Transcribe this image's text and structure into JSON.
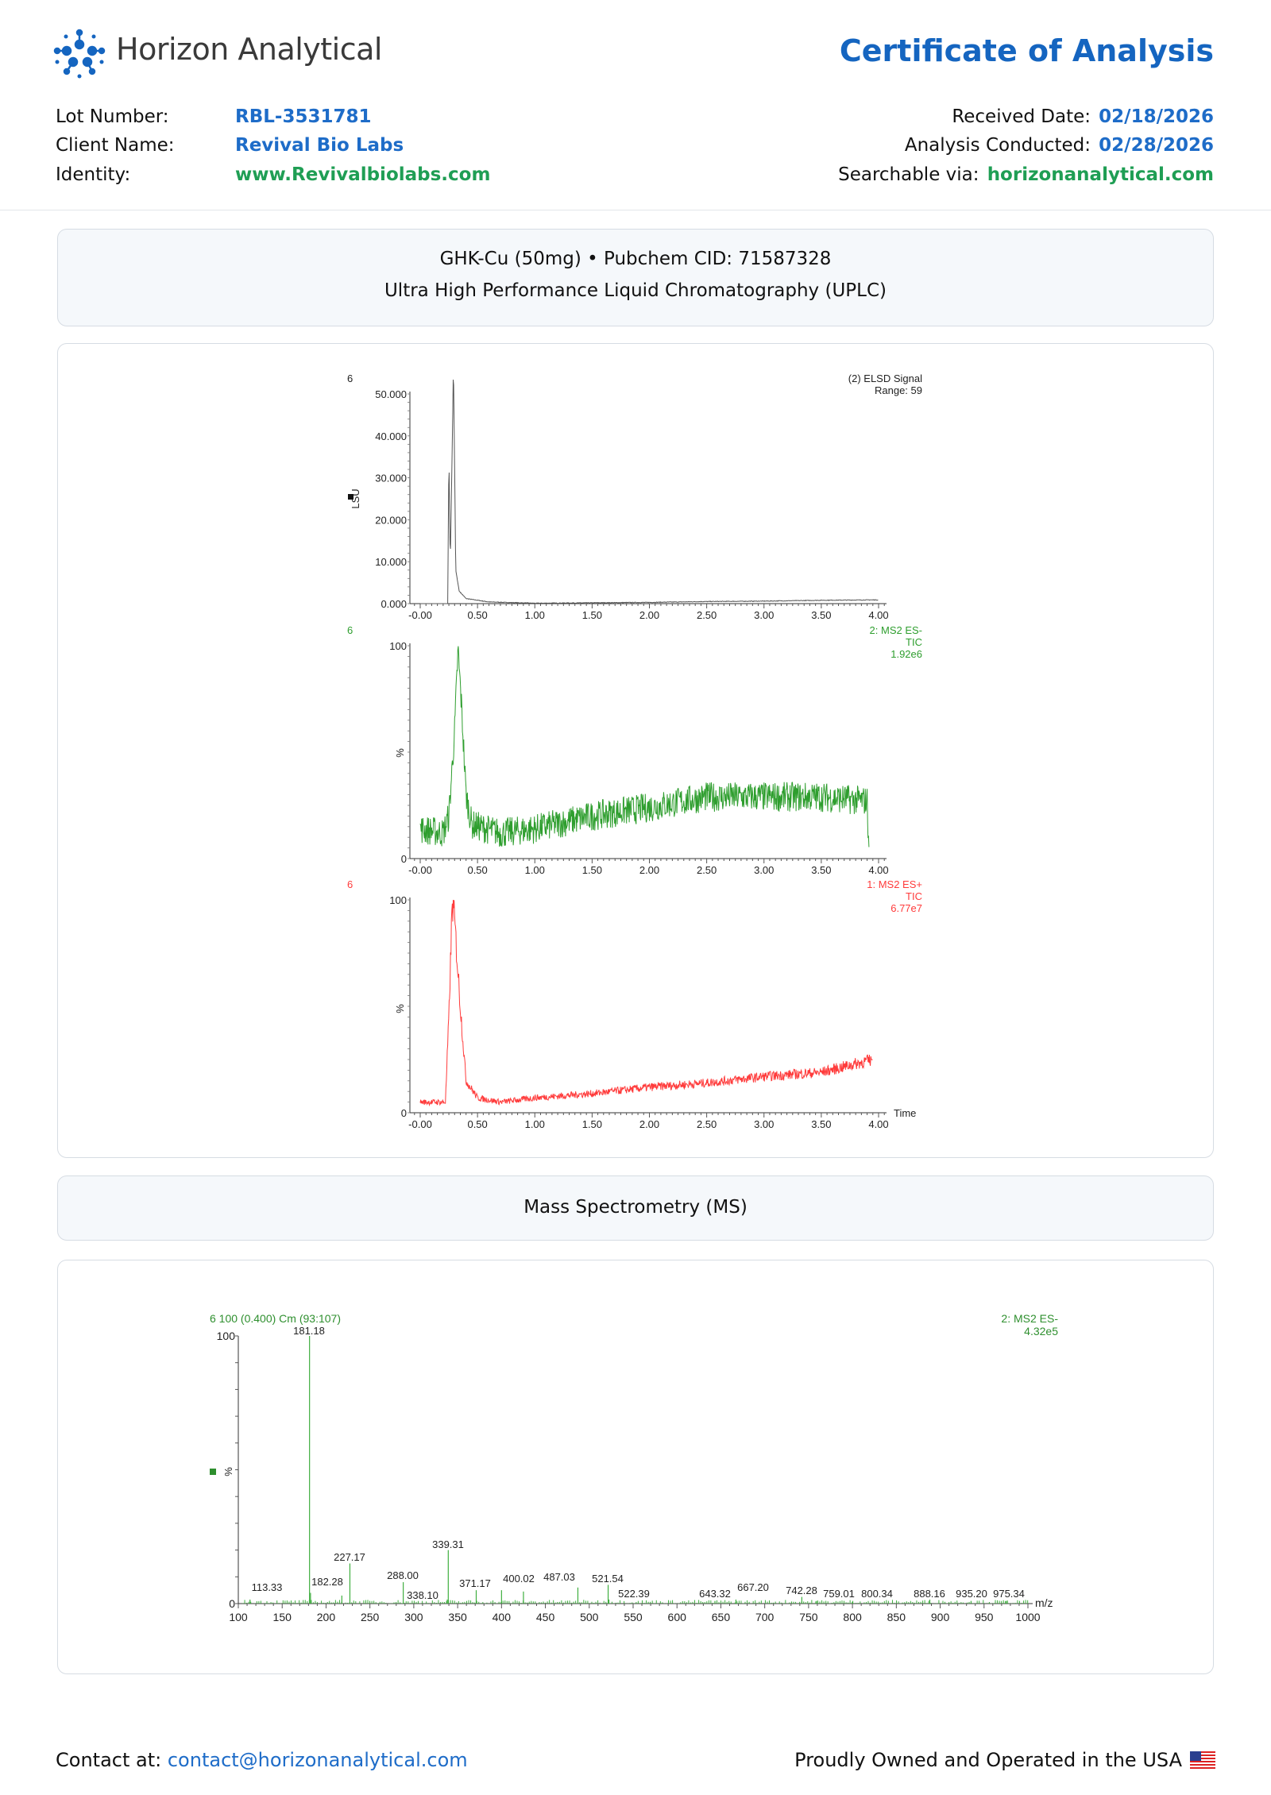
{
  "header": {
    "brand": "Horizon Analytical",
    "title": "Certificate of Analysis",
    "logo_icon": "molecule-burst-logo",
    "left_fields": [
      {
        "label": "Lot Number:",
        "value": "RBL-3531781",
        "color": "#1e6cc8"
      },
      {
        "label": "Client Name:",
        "value": "Revival Bio Labs",
        "color": "#1e6cc8"
      },
      {
        "label": "Identity:",
        "value": "www.Revivalbiolabs.com",
        "color": "#1f9e54"
      }
    ],
    "right_fields": [
      {
        "label": "Received Date:",
        "value": "02/18/2026",
        "color": "#1e6cc8"
      },
      {
        "label": "Analysis Conducted:",
        "value": "02/28/2026",
        "color": "#1e6cc8"
      },
      {
        "label": "Searchable via:",
        "value": "horizonanalytical.com",
        "color": "#1f9e54"
      }
    ]
  },
  "section1": {
    "line1": "GHK-Cu (50mg) • Pubchem CID: 71587328",
    "line2": "Ultra High Performance Liquid Chromatography (UPLC)"
  },
  "section2": {
    "title": "Mass Spectrometry (MS)"
  },
  "footer": {
    "contact_label": "Contact at:",
    "contact_email": "contact@horizonanalytical.com",
    "tagline": "Proudly Owned and Operated in the USA",
    "flag_icon": "us-flag-icon"
  },
  "chart_data": [
    {
      "type": "line",
      "scan_label": "6",
      "legend": [
        "(2) ELSD Signal",
        "Range: 59"
      ],
      "ylabel": "LSU",
      "color": "#555555",
      "xlim": [
        0,
        4
      ],
      "ylim": [
        0,
        58
      ],
      "xticks": [
        "-0.00",
        "0.50",
        "1.00",
        "1.50",
        "2.00",
        "2.50",
        "3.00",
        "3.50",
        "4.00"
      ],
      "yticks": [
        {
          "v": 0,
          "t": "0.000"
        },
        {
          "v": 10,
          "t": "10.000"
        },
        {
          "v": 20,
          "t": "20.000"
        },
        {
          "v": 30,
          "t": "30.000"
        },
        {
          "v": 40,
          "t": "40.000"
        },
        {
          "v": 50,
          "t": "50.000"
        }
      ],
      "x": [
        0.0,
        0.24,
        0.25,
        0.262,
        0.275,
        0.29,
        0.31,
        0.34,
        0.4,
        0.6,
        1.0,
        1.5,
        2.0,
        2.5,
        3.0,
        3.5,
        4.0
      ],
      "y": [
        0.0,
        0.0,
        35.5,
        10.0,
        30,
        57.0,
        8.0,
        3.0,
        1.2,
        0.4,
        0.1,
        0.2,
        0.3,
        0.5,
        0.6,
        0.8,
        0.9
      ]
    },
    {
      "type": "line",
      "scan_label": "6",
      "legend": [
        "2: MS2 ES-",
        "TIC",
        "1.92e6"
      ],
      "ylabel": "%",
      "color": "#2e9e2e",
      "xlim": [
        0,
        4
      ],
      "ylim": [
        0,
        100
      ],
      "xticks": [
        "-0.00",
        "0.50",
        "1.00",
        "1.50",
        "2.00",
        "2.50",
        "3.00",
        "3.50",
        "4.00"
      ],
      "yticks": [
        {
          "v": 0,
          "t": "0"
        },
        {
          "v": 100,
          "t": "100"
        }
      ],
      "x": [
        0.0,
        0.2,
        0.25,
        0.3,
        0.33,
        0.36,
        0.4,
        0.45,
        0.7,
        1.0,
        1.5,
        2.0,
        2.5,
        3.0,
        3.5,
        3.9,
        3.92
      ],
      "y": [
        14,
        12,
        20,
        60,
        98,
        72,
        30,
        16,
        12,
        14,
        20,
        24,
        29,
        29,
        29,
        27,
        0
      ]
    },
    {
      "type": "line",
      "scan_label": "6",
      "legend": [
        "1: MS2 ES+",
        "TIC",
        "6.77e7"
      ],
      "ylabel": "%",
      "xlabel": "Time",
      "color": "#ff3b3b",
      "xlim": [
        0,
        4
      ],
      "ylim": [
        0,
        100
      ],
      "xticks": [
        "-0.00",
        "0.50",
        "1.00",
        "1.50",
        "2.00",
        "2.50",
        "3.00",
        "3.50",
        "4.00"
      ],
      "yticks": [
        {
          "v": 0,
          "t": "0"
        },
        {
          "v": 100,
          "t": "100"
        }
      ],
      "x": [
        0.0,
        0.22,
        0.25,
        0.28,
        0.3,
        0.35,
        0.4,
        0.5,
        0.7,
        1.0,
        1.5,
        2.0,
        2.5,
        3.0,
        3.5,
        3.95
      ],
      "y": [
        5,
        5,
        45,
        99,
        90,
        50,
        15,
        7,
        5,
        7,
        9,
        12,
        14,
        17,
        19,
        25
      ]
    },
    {
      "type": "bar",
      "header": "6 100 (0.400) Cm (93:107)",
      "legend": [
        "2: MS2 ES-",
        "4.32e5"
      ],
      "ylabel": "%",
      "xlabel": "m/z",
      "color": "#3fae3f",
      "xlim": [
        100,
        1000
      ],
      "ylim": [
        0,
        100
      ],
      "xticks": [
        "100",
        "150",
        "200",
        "250",
        "300",
        "350",
        "400",
        "450",
        "500",
        "550",
        "600",
        "650",
        "700",
        "750",
        "800",
        "850",
        "900",
        "950",
        "1000"
      ],
      "yticks": [
        {
          "v": 0,
          "t": "0"
        },
        {
          "v": 100,
          "t": "100"
        }
      ],
      "peaks": [
        {
          "mz": 113.33,
          "i": 1.5,
          "label": "113.33"
        },
        {
          "mz": 181.18,
          "i": 100,
          "label": "181.18"
        },
        {
          "mz": 182.28,
          "i": 4,
          "label": "182.28"
        },
        {
          "mz": 218.0,
          "i": 3
        },
        {
          "mz": 227.17,
          "i": 15,
          "label": "227.17"
        },
        {
          "mz": 288.0,
          "i": 8,
          "label": "288.00"
        },
        {
          "mz": 338.1,
          "i": 1.5,
          "label": "338.10"
        },
        {
          "mz": 339.31,
          "i": 20,
          "label": "339.31"
        },
        {
          "mz": 371.17,
          "i": 5,
          "label": "371.17"
        },
        {
          "mz": 400.02,
          "i": 5,
          "label": "400.02"
        },
        {
          "mz": 425.0,
          "i": 4.5
        },
        {
          "mz": 487.03,
          "i": 6,
          "label": "487.03"
        },
        {
          "mz": 521.54,
          "i": 7,
          "label": "521.54"
        },
        {
          "mz": 522.39,
          "i": 1.5,
          "label": "522.39"
        },
        {
          "mz": 643.32,
          "i": 1,
          "label": "643.32"
        },
        {
          "mz": 667.2,
          "i": 1.5,
          "label": "667.20"
        },
        {
          "mz": 742.28,
          "i": 2.5,
          "label": "742.28"
        },
        {
          "mz": 759.01,
          "i": 1,
          "label": "759.01"
        },
        {
          "mz": 800.34,
          "i": 1,
          "label": "800.34"
        },
        {
          "mz": 888.16,
          "i": 1.5,
          "label": "888.16"
        },
        {
          "mz": 935.2,
          "i": 1,
          "label": "935.20"
        },
        {
          "mz": 975.34,
          "i": 1,
          "label": "975.34"
        }
      ]
    }
  ]
}
